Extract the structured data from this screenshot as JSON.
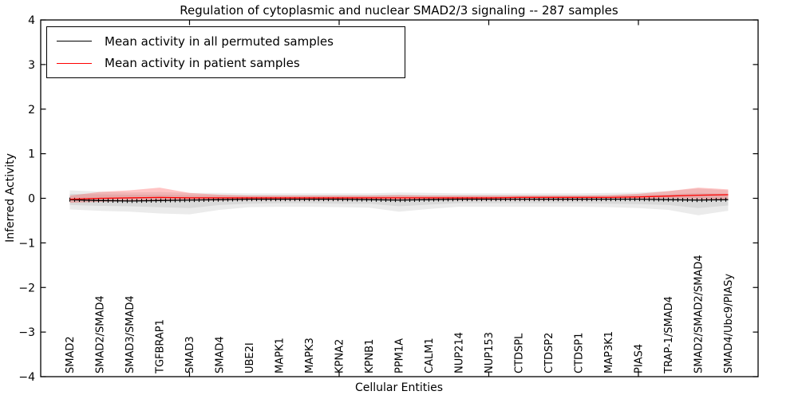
{
  "chart_data": {
    "type": "line",
    "title": "Regulation of cytoplasmic and nuclear SMAD2/3 signaling -- 287 samples",
    "xlabel": "Cellular Entities",
    "ylabel": "Inferred Activity",
    "ylim": [
      -4,
      4
    ],
    "yticks": [
      4,
      3,
      2,
      1,
      0,
      -1,
      -2,
      -3,
      -4
    ],
    "grid": false,
    "legend_position": "upper left",
    "categories": [
      "SMAD2",
      "SMAD2/SMAD4",
      "SMAD3/SMAD4",
      "TGFBRAP1",
      "SMAD3",
      "SMAD4",
      "UBE2I",
      "MAPK1",
      "MAPK3",
      "KPNA2",
      "KPNB1",
      "PPM1A",
      "CALM1",
      "NUP214",
      "NUP153",
      "CTDSPL",
      "CTDSP2",
      "CTDSP1",
      "MAP3K1",
      "PIAS4",
      "TRAP-1/SMAD4",
      "SMAD2/SMAD2/SMAD4",
      "SMAD4/Ubc9/PIASy"
    ],
    "series": [
      {
        "name": "Mean activity in all permuted samples",
        "color": "#000000",
        "marker": "vertical-tick",
        "values": [
          -0.03,
          -0.05,
          -0.06,
          -0.05,
          -0.04,
          -0.03,
          -0.02,
          -0.02,
          -0.02,
          -0.02,
          -0.03,
          -0.04,
          -0.03,
          -0.02,
          -0.02,
          -0.02,
          -0.02,
          -0.02,
          -0.02,
          -0.02,
          -0.03,
          -0.04,
          -0.03
        ]
      },
      {
        "name": "Mean activity in patient samples",
        "color": "#ff0000",
        "marker": "none",
        "values": [
          -0.02,
          0.0,
          0.01,
          0.02,
          0.01,
          0.01,
          0.01,
          0.01,
          0.01,
          0.01,
          0.01,
          0.01,
          0.01,
          0.01,
          0.01,
          0.02,
          0.02,
          0.02,
          0.02,
          0.03,
          0.05,
          0.07,
          0.08
        ]
      }
    ],
    "bands": [
      {
        "name": "permuted-std-outer",
        "color": "#ebebeb",
        "opacity": 1,
        "upper": [
          0.18,
          0.15,
          0.13,
          0.14,
          0.12,
          0.12,
          0.11,
          0.11,
          0.11,
          0.11,
          0.11,
          0.13,
          0.12,
          0.11,
          0.11,
          0.11,
          0.11,
          0.11,
          0.12,
          0.13,
          0.16,
          0.22,
          0.18
        ],
        "lower": [
          -0.25,
          -0.28,
          -0.3,
          -0.34,
          -0.36,
          -0.26,
          -0.2,
          -0.19,
          -0.19,
          -0.2,
          -0.21,
          -0.3,
          -0.24,
          -0.19,
          -0.19,
          -0.19,
          -0.19,
          -0.19,
          -0.2,
          -0.22,
          -0.26,
          -0.38,
          -0.28
        ]
      },
      {
        "name": "permuted-std-inner",
        "color": "#d9d9d9",
        "opacity": 1,
        "upper": [
          0.1,
          0.09,
          0.08,
          0.08,
          0.07,
          0.07,
          0.07,
          0.07,
          0.07,
          0.07,
          0.07,
          0.08,
          0.07,
          0.07,
          0.07,
          0.07,
          0.07,
          0.07,
          0.07,
          0.08,
          0.09,
          0.12,
          0.1
        ],
        "lower": [
          -0.15,
          -0.17,
          -0.18,
          -0.2,
          -0.22,
          -0.15,
          -0.12,
          -0.11,
          -0.11,
          -0.12,
          -0.12,
          -0.18,
          -0.14,
          -0.11,
          -0.11,
          -0.11,
          -0.11,
          -0.11,
          -0.12,
          -0.13,
          -0.15,
          -0.22,
          -0.16
        ]
      },
      {
        "name": "patient-std",
        "color": "#ff3c3c",
        "opacity": 0.3,
        "upper": [
          0.06,
          0.14,
          0.18,
          0.24,
          0.12,
          0.08,
          0.06,
          0.06,
          0.06,
          0.06,
          0.06,
          0.07,
          0.06,
          0.06,
          0.06,
          0.06,
          0.06,
          0.06,
          0.07,
          0.1,
          0.16,
          0.24,
          0.2
        ],
        "lower": [
          -0.1,
          -0.08,
          -0.06,
          -0.05,
          -0.05,
          -0.05,
          -0.04,
          -0.04,
          -0.04,
          -0.04,
          -0.04,
          -0.05,
          -0.04,
          -0.04,
          -0.04,
          -0.04,
          -0.04,
          -0.04,
          -0.03,
          -0.02,
          0.0,
          -0.02,
          -0.04
        ]
      }
    ],
    "axis_color": "#000000",
    "background_color": "#ffffff"
  }
}
